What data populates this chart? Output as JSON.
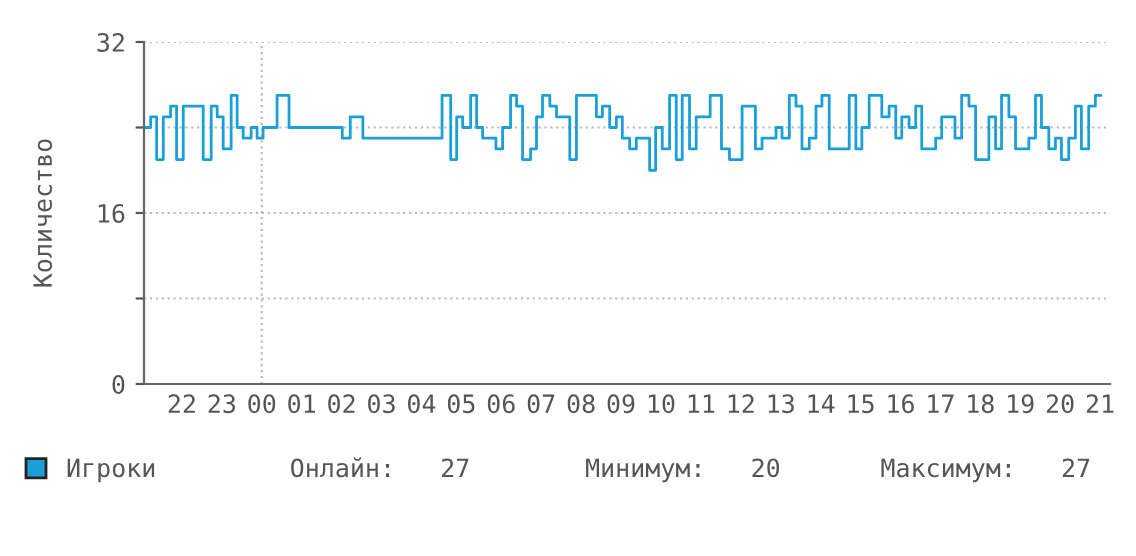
{
  "chart_data": {
    "type": "step",
    "ylabel": "Количество",
    "x": [
      "2000-01-01T21:04",
      "2000-01-01T21:13",
      "2000-01-01T21:22",
      "2000-01-01T21:32",
      "2000-01-01T21:43",
      "2000-01-01T21:52",
      "2000-01-01T22:02",
      "2000-01-01T22:32",
      "2000-01-01T22:44",
      "2000-01-01T22:53",
      "2000-01-01T23:02",
      "2000-01-01T23:14",
      "2000-01-01T23:23",
      "2000-01-01T23:32",
      "2000-01-01T23:44",
      "2000-01-01T23:53",
      "2000-01-02T00:02",
      "2000-01-02T00:23",
      "2000-01-02T00:41",
      "2000-01-02T02:01",
      "2000-01-02T02:13",
      "2000-01-02T02:32",
      "2000-01-02T04:31",
      "2000-01-02T04:44",
      "2000-01-02T04:53",
      "2000-01-02T05:02",
      "2000-01-02T05:14",
      "2000-01-02T05:23",
      "2000-01-02T05:32",
      "2000-01-02T05:52",
      "2000-01-02T06:02",
      "2000-01-02T06:14",
      "2000-01-02T06:23",
      "2000-01-02T06:32",
      "2000-01-02T06:44",
      "2000-01-02T06:53",
      "2000-01-02T07:02",
      "2000-01-02T07:13",
      "2000-01-02T07:23",
      "2000-01-02T07:43",
      "2000-01-02T07:53",
      "2000-01-02T08:23",
      "2000-01-02T08:32",
      "2000-01-02T08:43",
      "2000-01-02T08:53",
      "2000-01-02T09:02",
      "2000-01-02T09:13",
      "2000-01-02T09:23",
      "2000-01-02T09:43",
      "2000-01-02T09:52",
      "2000-01-02T10:02",
      "2000-01-02T10:13",
      "2000-01-02T10:23",
      "2000-01-02T10:32",
      "2000-01-02T10:43",
      "2000-01-02T10:53",
      "2000-01-02T11:14",
      "2000-01-02T11:31",
      "2000-01-02T11:43",
      "2000-01-02T12:02",
      "2000-01-02T12:22",
      "2000-01-02T12:32",
      "2000-01-02T12:53",
      "2000-01-02T13:02",
      "2000-01-02T13:13",
      "2000-01-02T13:23",
      "2000-01-02T13:32",
      "2000-01-02T13:43",
      "2000-01-02T13:53",
      "2000-01-02T14:02",
      "2000-01-02T14:13",
      "2000-01-02T14:43",
      "2000-01-02T14:53",
      "2000-01-02T15:02",
      "2000-01-02T15:13",
      "2000-01-02T15:32",
      "2000-01-02T15:43",
      "2000-01-02T15:53",
      "2000-01-02T16:02",
      "2000-01-02T16:13",
      "2000-01-02T16:23",
      "2000-01-02T16:32",
      "2000-01-02T16:53",
      "2000-01-02T17:02",
      "2000-01-02T17:22",
      "2000-01-02T17:32",
      "2000-01-02T17:43",
      "2000-01-02T17:53",
      "2000-01-02T18:13",
      "2000-01-02T18:23",
      "2000-01-02T18:32",
      "2000-01-02T18:43",
      "2000-01-02T18:53",
      "2000-01-02T19:13",
      "2000-01-02T19:23",
      "2000-01-02T19:32",
      "2000-01-02T19:43",
      "2000-01-02T19:53",
      "2000-01-02T20:02",
      "2000-01-02T20:13",
      "2000-01-02T20:23",
      "2000-01-02T20:32",
      "2000-01-02T20:43",
      "2000-01-02T20:53",
      "2000-01-02T21:01"
    ],
    "series": [
      {
        "name": "Игроки",
        "color": "#1a9fd6",
        "values": [
          24,
          25,
          21,
          25,
          26,
          21,
          26,
          21,
          26,
          25,
          22,
          27,
          24,
          23,
          24,
          23,
          24,
          27,
          24,
          23,
          25,
          23,
          27,
          21,
          25,
          24,
          27,
          24,
          23,
          22,
          24,
          27,
          26,
          21,
          22,
          25,
          27,
          26,
          25,
          21,
          27,
          25,
          26,
          24,
          25,
          23,
          22,
          23,
          20,
          24,
          22,
          27,
          21,
          27,
          22,
          25,
          27,
          22,
          21,
          26,
          22,
          23,
          24,
          23,
          27,
          26,
          22,
          23,
          26,
          27,
          22,
          27,
          22,
          24,
          27,
          25,
          26,
          23,
          25,
          24,
          26,
          22,
          23,
          25,
          23,
          27,
          26,
          21,
          25,
          22,
          27,
          25,
          22,
          23,
          27,
          24,
          22,
          23,
          21,
          23,
          26,
          22,
          26,
          27,
          27
        ]
      }
    ],
    "xlim": [
      "2000-01-01T21:03",
      "2000-01-02T21:15"
    ],
    "xticks": [
      {
        "value": "2000-01-01T22:00",
        "label": "22"
      },
      {
        "value": "2000-01-01T23:00",
        "label": "23"
      },
      {
        "value": "2000-01-02T00:00",
        "label": "00"
      },
      {
        "value": "2000-01-02T01:00",
        "label": "01"
      },
      {
        "value": "2000-01-02T02:00",
        "label": "02"
      },
      {
        "value": "2000-01-02T03:00",
        "label": "03"
      },
      {
        "value": "2000-01-02T04:00",
        "label": "04"
      },
      {
        "value": "2000-01-02T05:00",
        "label": "05"
      },
      {
        "value": "2000-01-02T06:00",
        "label": "06"
      },
      {
        "value": "2000-01-02T07:00",
        "label": "07"
      },
      {
        "value": "2000-01-02T08:00",
        "label": "08"
      },
      {
        "value": "2000-01-02T09:00",
        "label": "09"
      },
      {
        "value": "2000-01-02T10:00",
        "label": "10"
      },
      {
        "value": "2000-01-02T11:00",
        "label": "11"
      },
      {
        "value": "2000-01-02T12:00",
        "label": "12"
      },
      {
        "value": "2000-01-02T13:00",
        "label": "13"
      },
      {
        "value": "2000-01-02T14:00",
        "label": "14"
      },
      {
        "value": "2000-01-02T15:00",
        "label": "15"
      },
      {
        "value": "2000-01-02T16:00",
        "label": "16"
      },
      {
        "value": "2000-01-02T17:00",
        "label": "17"
      },
      {
        "value": "2000-01-02T18:00",
        "label": "18"
      },
      {
        "value": "2000-01-02T19:00",
        "label": "19"
      },
      {
        "value": "2000-01-02T20:00",
        "label": "20"
      },
      {
        "value": "2000-01-02T21:00",
        "label": "21"
      }
    ],
    "ylim": [
      0,
      32
    ],
    "yticks": [
      0,
      {
        "value": 8,
        "label": null
      },
      16,
      {
        "value": 24,
        "label": null
      },
      32
    ],
    "grid": "y",
    "ref_lines": [
      {
        "axis": "x",
        "value": "2000-01-02T00:00",
        "color": "#bbbbbb",
        "line_style": "dotted"
      }
    ],
    "legend": "bottom",
    "annotations": [
      "Онлайн:   27",
      "Минимум:   20",
      "Максимум:   27"
    ]
  }
}
